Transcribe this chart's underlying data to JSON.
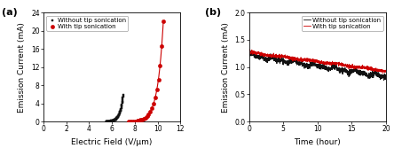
{
  "panel_a": {
    "xlabel": "Electric Field (V/μm)",
    "ylabel": "Emission Current (mA)",
    "xlim": [
      0,
      12
    ],
    "ylim": [
      0,
      24
    ],
    "yticks": [
      0,
      4,
      8,
      12,
      16,
      20,
      24
    ],
    "xticks": [
      0,
      2,
      4,
      6,
      8,
      10,
      12
    ],
    "black": {
      "label": "Without tip sonication",
      "color": "#111111",
      "marker": "s",
      "markersize": 1.2,
      "x_start": 5.5,
      "x_end": 7.0,
      "amplitude": 6.0,
      "curvature": 3.5,
      "n_points": 80
    },
    "red": {
      "label": "With tip sonication",
      "color": "#cc0000",
      "marker": "o",
      "markersize": 3.0,
      "x_start": 7.5,
      "x_end": 10.5,
      "amplitude": 22.0,
      "curvature": 2.0,
      "n_points": 22
    }
  },
  "panel_b": {
    "xlabel": "Time (hour)",
    "ylabel": "Emission Current (mA)",
    "xlim": [
      0,
      20
    ],
    "ylim": [
      0.0,
      2.0
    ],
    "yticks": [
      0.0,
      0.5,
      1.0,
      1.5,
      2.0
    ],
    "xticks": [
      0,
      5,
      10,
      15,
      20
    ],
    "black": {
      "label": "Without tip sonication",
      "color": "#111111",
      "start": 1.22,
      "end": 0.82,
      "noise": 0.025,
      "linewidth": 0.6
    },
    "red": {
      "label": "With tip sonication",
      "color": "#cc0000",
      "start": 1.27,
      "end": 0.93,
      "noise": 0.015,
      "linewidth": 0.6
    }
  },
  "figure_bg": "#ffffff",
  "axes_bg": "#ffffff",
  "tick_fontsize": 5.5,
  "label_fontsize": 6.5,
  "legend_fontsize": 5.0
}
